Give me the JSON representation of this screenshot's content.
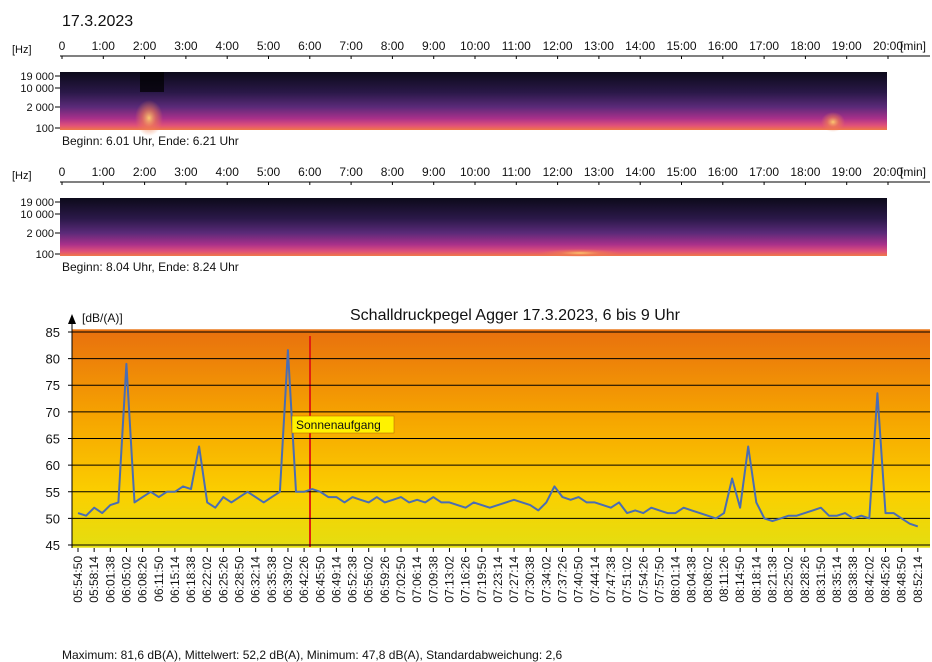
{
  "chart_data": [
    {
      "type": "spectrogram",
      "title": "17.3.2023",
      "y_unit": "[Hz]",
      "x_unit": "[min]",
      "xlim": [
        0,
        20
      ],
      "xticks": [
        0,
        {
          "value": 1,
          "label": "1:00"
        },
        {
          "value": 2,
          "label": "2:00"
        },
        {
          "value": 3,
          "label": "3:00"
        },
        {
          "value": 4,
          "label": "4:00"
        },
        {
          "value": 5,
          "label": "5:00"
        },
        {
          "value": 6,
          "label": "6:00"
        },
        {
          "value": 7,
          "label": "7:00"
        },
        {
          "value": 8,
          "label": "8:00"
        },
        {
          "value": 9,
          "label": "9:00"
        },
        {
          "value": 10,
          "label": "10:00"
        },
        {
          "value": 11,
          "label": "11:00"
        },
        {
          "value": 12,
          "label": "12:00"
        },
        {
          "value": 13,
          "label": "13:00"
        },
        {
          "value": 14,
          "label": "14:00"
        },
        {
          "value": 15,
          "label": "15:00"
        },
        {
          "value": 16,
          "label": "16:00"
        },
        {
          "value": 17,
          "label": "17:00"
        },
        {
          "value": 18,
          "label": "18:00"
        },
        {
          "value": 19,
          "label": "19:00"
        },
        {
          "value": 20,
          "label": "20:00"
        }
      ],
      "yticks": [
        {
          "value": 19000,
          "label": "19 000"
        },
        {
          "value": 10000,
          "label": "10 000"
        },
        {
          "value": 2000,
          "label": "2 000"
        },
        100
      ],
      "caption": "Beginn: 6.01 Uhr, Ende: 6.21 Uhr"
    },
    {
      "type": "spectrogram",
      "y_unit": "[Hz]",
      "x_unit": "[min]",
      "xlim": [
        0,
        20
      ],
      "xticks": [
        0,
        {
          "value": 1,
          "label": "1:00"
        },
        {
          "value": 2,
          "label": "2:00"
        },
        {
          "value": 3,
          "label": "3:00"
        },
        {
          "value": 4,
          "label": "4:00"
        },
        {
          "value": 5,
          "label": "5:00"
        },
        {
          "value": 6,
          "label": "6:00"
        },
        {
          "value": 7,
          "label": "7:00"
        },
        {
          "value": 8,
          "label": "8:00"
        },
        {
          "value": 9,
          "label": "9:00"
        },
        {
          "value": 10,
          "label": "10:00"
        },
        {
          "value": 11,
          "label": "11:00"
        },
        {
          "value": 12,
          "label": "12:00"
        },
        {
          "value": 13,
          "label": "13:00"
        },
        {
          "value": 14,
          "label": "14:00"
        },
        {
          "value": 15,
          "label": "15:00"
        },
        {
          "value": 16,
          "label": "16:00"
        },
        {
          "value": 17,
          "label": "17:00"
        },
        {
          "value": 18,
          "label": "18:00"
        },
        {
          "value": 19,
          "label": "19:00"
        },
        {
          "value": 20,
          "label": "20:00"
        }
      ],
      "yticks": [
        {
          "value": 19000,
          "label": "19 000"
        },
        {
          "value": 10000,
          "label": "10 000"
        },
        {
          "value": 2000,
          "label": "2 000"
        },
        100
      ],
      "caption": "Beginn: 8.04 Uhr, Ende: 8.24 Uhr"
    },
    {
      "type": "line",
      "title": "Schalldruckpegel  Agger 17.3.2023, 6 bis 9 Uhr",
      "y_label": "[dB/(A)]",
      "annotation": "Sonnenaufgang",
      "footer": "Maximum: 81,6 dB(A), Mittelwert: 52,2 dB(A), Minimum: 47,8 dB(A), Standardabweichung: 2,6",
      "ylim": [
        44.5,
        85.5
      ],
      "yticks": [
        45,
        50,
        55,
        60,
        65,
        70,
        75,
        80,
        85
      ],
      "grid": true,
      "categories": [
        "05:54:50",
        null,
        "05:58:14",
        null,
        "06:01:38",
        null,
        "06:05:02",
        null,
        "06:08:26",
        null,
        "06:11:50",
        null,
        "06:15:14",
        null,
        "06:18:38",
        null,
        "06:22:02",
        null,
        "06:25:26",
        null,
        "06:28:50",
        null,
        "06:32:14",
        null,
        "06:35:38",
        null,
        "06:39:02",
        null,
        "06:42:26",
        null,
        "06:45:50",
        null,
        "06:49:14",
        null,
        "06:52:38",
        null,
        "06:56:02",
        null,
        "06:59:26",
        null,
        "07:02:50",
        null,
        "07:06:14",
        null,
        "07:09:38",
        null,
        "07:13:02",
        null,
        "07:16:26",
        null,
        "07:19:50",
        null,
        "07:23:14",
        null,
        "07:27:14",
        null,
        "07:30:38",
        null,
        "07:34:02",
        null,
        "07:37:26",
        null,
        "07:40:50",
        null,
        "07:44:14",
        null,
        "07:47:38",
        null,
        "07:51:02",
        null,
        "07:54:26",
        null,
        "07:57:50",
        null,
        "08:01:14",
        null,
        "08:04:38",
        null,
        "08:08:02",
        null,
        "08:11:26",
        null,
        "08:14:50",
        null,
        "08:18:14",
        null,
        "08:21:38",
        null,
        "08:25:02",
        null,
        "08:28:26",
        null,
        "08:31:50",
        null,
        "08:35:14",
        null,
        "08:38:38",
        null,
        "08:42:02",
        null,
        "08:45:26",
        null,
        "08:48:50",
        null,
        "08:52:14"
      ],
      "series": [
        {
          "name": "Schalldruckpegel",
          "color": "#4a6db3",
          "values": [
            51,
            50.5,
            52,
            51,
            52.5,
            53,
            79,
            53,
            54,
            55,
            54,
            55,
            55,
            56,
            55.5,
            63.5,
            53,
            52,
            54,
            53,
            54,
            55,
            54,
            53,
            54,
            55,
            81.6,
            55,
            55,
            55.5,
            55,
            54,
            54,
            53,
            54,
            53.5,
            53,
            54,
            53,
            53.5,
            54,
            53,
            53.5,
            53,
            54,
            53,
            53,
            52.5,
            52,
            53,
            52.5,
            52,
            52.5,
            53,
            53.5,
            53,
            52.5,
            51.5,
            53,
            56,
            54,
            53.5,
            54,
            53,
            53,
            52.5,
            52,
            53,
            51,
            51.5,
            51,
            52,
            51.5,
            51,
            51,
            52,
            51.5,
            51,
            50.5,
            50,
            51,
            57.5,
            52,
            63.5,
            53,
            50,
            49.5,
            50,
            50.5,
            50.5,
            51,
            51.5,
            52,
            50.5,
            50.5,
            51,
            50,
            50.5,
            50,
            73.5,
            51,
            51,
            50,
            49,
            48.5
          ]
        }
      ]
    }
  ]
}
